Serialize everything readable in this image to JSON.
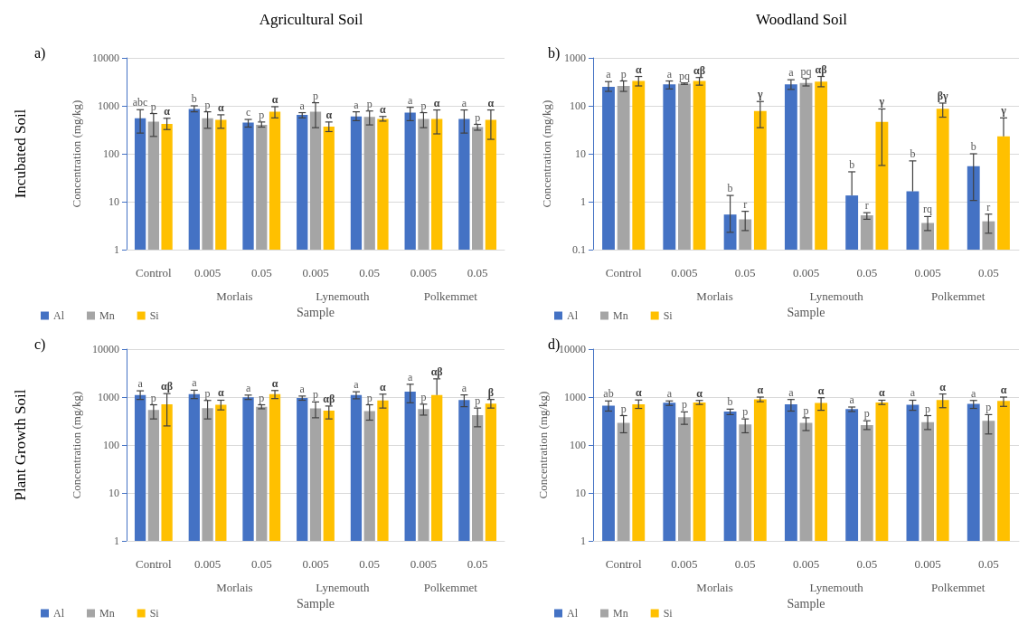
{
  "chart_data": [
    {
      "type": "bar",
      "title": "Agricultural Soil",
      "subtitle": "Incubated Soil",
      "xlabel": "Sample",
      "ylabel": "Concentration (mg/kg)",
      "annotations": [
        "a)",
        "Morlais",
        "Lynemouth",
        "Polkemmet"
      ],
      "categories": [
        "Control",
        "0.005",
        "0.05",
        "0.005",
        "0.05",
        "0.005",
        "0.05"
      ],
      "log": true,
      "ylim": [
        1,
        10000
      ],
      "yticks": [
        1,
        10,
        100,
        1000,
        10000
      ],
      "grid": "y",
      "legend": "bottom left",
      "series": [
        {
          "name": "Al",
          "color": "#4472c4",
          "values": [
            550,
            860,
            450,
            650,
            600,
            720,
            530
          ],
          "errors": [
            [
              270,
              830
            ],
            [
              750,
              1000
            ],
            [
              360,
              520
            ],
            [
              560,
              720
            ],
            [
              490,
              750
            ],
            [
              490,
              930
            ],
            [
              270,
              820
            ]
          ],
          "value_labels": [
            "abc",
            "b",
            "c",
            "a",
            "a",
            "a",
            "a"
          ]
        },
        {
          "name": "Mn",
          "color": "#a5a5a5",
          "values": [
            470,
            550,
            400,
            750,
            590,
            530,
            360
          ],
          "errors": [
            [
              230,
              690
            ],
            [
              340,
              750
            ],
            [
              360,
              460
            ],
            [
              350,
              1160
            ],
            [
              400,
              780
            ],
            [
              350,
              720
            ],
            [
              310,
              410
            ]
          ],
          "value_labels": [
            "p",
            "p",
            "p",
            "p",
            "p",
            "p",
            "p"
          ]
        },
        {
          "name": "Si",
          "color": "#ffc000",
          "values": [
            420,
            510,
            750,
            370,
            530,
            530,
            510
          ],
          "errors": [
            [
              320,
              550
            ],
            [
              340,
              650
            ],
            [
              560,
              960
            ],
            [
              290,
              460
            ],
            [
              480,
              600
            ],
            [
              260,
              820
            ],
            [
              200,
              820
            ]
          ],
          "value_labels": [
            "α",
            "α",
            "α",
            "α",
            "α",
            "α",
            "α"
          ]
        }
      ]
    },
    {
      "type": "bar",
      "title": "Woodland Soil",
      "xlabel": "Sample",
      "ylabel": "Concentration (mg/kg)",
      "annotations": [
        "b)",
        "Morlais",
        "Lynemouth",
        "Polkemmet"
      ],
      "categories": [
        "Control",
        "0.005",
        "0.05",
        "0.005",
        "0.05",
        "0.005",
        "0.05"
      ],
      "log": true,
      "ylim": [
        0.1,
        1000
      ],
      "yticks": [
        0.1,
        1,
        10,
        100,
        1000
      ],
      "grid": "y",
      "legend": "bottom left",
      "series": [
        {
          "name": "Al",
          "color": "#4472c4",
          "values": [
            250,
            280,
            0.54,
            280,
            1.35,
            1.64,
            5.5
          ],
          "errors": [
            [
              200,
              320
            ],
            [
              225,
              330
            ],
            [
              0.23,
              1.35
            ],
            [
              220,
              350
            ],
            [
              1.35,
              4.2
            ],
            [
              1.64,
              7.1
            ],
            [
              1.06,
              10
            ]
          ],
          "value_labels": [
            "a",
            "a",
            "b",
            "a",
            "b",
            "b",
            "b"
          ]
        },
        {
          "name": "Mn",
          "color": "#a5a5a5",
          "values": [
            260,
            290,
            0.43,
            300,
            0.52,
            0.36,
            0.39
          ],
          "errors": [
            [
              200,
              330
            ],
            [
              280,
              300
            ],
            [
              0.25,
              0.63
            ],
            [
              260,
              370
            ],
            [
              0.43,
              0.59
            ],
            [
              0.25,
              0.49
            ],
            [
              0.22,
              0.55
            ]
          ],
          "value_labels": [
            "p",
            "pq",
            "r",
            "pq",
            "r",
            "rq",
            "r"
          ]
        },
        {
          "name": "Si",
          "color": "#ffc000",
          "values": [
            330,
            330,
            78,
            320,
            46,
            87,
            23
          ],
          "errors": [
            [
              260,
              410
            ],
            [
              270,
              390
            ],
            [
              35,
              123
            ],
            [
              250,
              410
            ],
            [
              5.7,
              86
            ],
            [
              58,
              114
            ],
            [
              23,
              56
            ]
          ],
          "value_labels": [
            "α",
            "αβ",
            "γ",
            "αβ",
            "γ",
            "βγ",
            "γ"
          ]
        }
      ]
    },
    {
      "type": "bar",
      "subtitle": "Plant Growth Soil",
      "xlabel": "Sample",
      "ylabel": "Concentration (mg/kg)",
      "annotations": [
        "c)",
        "Morlais",
        "Lynemouth",
        "Polkemmet"
      ],
      "categories": [
        "Control",
        "0.005",
        "0.05",
        "0.005",
        "0.05",
        "0.005",
        "0.05"
      ],
      "log": true,
      "ylim": [
        1,
        10000
      ],
      "yticks": [
        1,
        10,
        100,
        1000,
        10000
      ],
      "grid": "y",
      "legend": "bottom left",
      "series": [
        {
          "name": "Al",
          "color": "#4472c4",
          "values": [
            1100,
            1150,
            990,
            960,
            1100,
            1300,
            870
          ],
          "errors": [
            [
              890,
              1350
            ],
            [
              930,
              1390
            ],
            [
              890,
              1100
            ],
            [
              860,
              1050
            ],
            [
              920,
              1290
            ],
            [
              760,
              1850
            ],
            [
              630,
              1110
            ]
          ],
          "value_labels": [
            "a",
            "a",
            "a",
            "a",
            "a",
            "a",
            "a"
          ]
        },
        {
          "name": "Mn",
          "color": "#a5a5a5",
          "values": [
            540,
            590,
            630,
            580,
            510,
            560,
            420
          ],
          "errors": [
            [
              350,
              690
            ],
            [
              350,
              850
            ],
            [
              570,
              690
            ],
            [
              370,
              790
            ],
            [
              330,
              690
            ],
            [
              420,
              710
            ],
            [
              240,
              590
            ]
          ],
          "value_labels": [
            "p",
            "p",
            "p",
            "p",
            "p",
            "p",
            "p"
          ]
        },
        {
          "name": "Si",
          "color": "#ffc000",
          "values": [
            710,
            690,
            1150,
            520,
            850,
            1100,
            730
          ],
          "errors": [
            [
              250,
              1180
            ],
            [
              540,
              860
            ],
            [
              930,
              1370
            ],
            [
              350,
              650
            ],
            [
              590,
              1150
            ],
            [
              1100,
              2400
            ],
            [
              590,
              890
            ]
          ],
          "value_labels": [
            "αβ",
            "α",
            "α",
            "αβ",
            "α",
            "αβ",
            "β"
          ]
        }
      ]
    },
    {
      "type": "bar",
      "xlabel": "Sample",
      "ylabel": "Concentration (mg/kg)",
      "annotations": [
        "d)",
        "Morlais",
        "Lynemouth",
        "Polkemmet"
      ],
      "categories": [
        "Control",
        "0.005",
        "0.05",
        "0.005",
        "0.05",
        "0.005",
        "0.05"
      ],
      "log": true,
      "ylim": [
        1,
        10000
      ],
      "yticks": [
        1,
        10,
        100,
        1000,
        10000
      ],
      "grid": "y",
      "legend": "bottom left",
      "series": [
        {
          "name": "Al",
          "color": "#4472c4",
          "values": [
            660,
            760,
            500,
            710,
            560,
            690,
            720
          ],
          "errors": [
            [
              510,
              830
            ],
            [
              670,
              830
            ],
            [
              430,
              560
            ],
            [
              510,
              890
            ],
            [
              500,
              620
            ],
            [
              530,
              860
            ],
            [
              580,
              850
            ]
          ],
          "value_labels": [
            "ab",
            "a",
            "b",
            "a",
            "a",
            "a",
            "a"
          ]
        },
        {
          "name": "Mn",
          "color": "#a5a5a5",
          "values": [
            290,
            380,
            270,
            290,
            260,
            300,
            320
          ],
          "errors": [
            [
              180,
              410
            ],
            [
              270,
              490
            ],
            [
              180,
              350
            ],
            [
              200,
              370
            ],
            [
              210,
              320
            ],
            [
              210,
              410
            ],
            [
              170,
              430
            ]
          ],
          "value_labels": [
            "p",
            "p",
            "p",
            "p",
            "p",
            "p",
            "p"
          ]
        },
        {
          "name": "Si",
          "color": "#ffc000",
          "values": [
            710,
            770,
            900,
            750,
            770,
            870,
            830
          ],
          "errors": [
            [
              580,
              870
            ],
            [
              700,
              850
            ],
            [
              800,
              1000
            ],
            [
              530,
              970
            ],
            [
              700,
              860
            ],
            [
              600,
              1160
            ],
            [
              640,
              1000
            ]
          ],
          "value_labels": [
            "α",
            "α",
            "α",
            "α",
            "α",
            "α",
            "α"
          ]
        }
      ]
    }
  ]
}
